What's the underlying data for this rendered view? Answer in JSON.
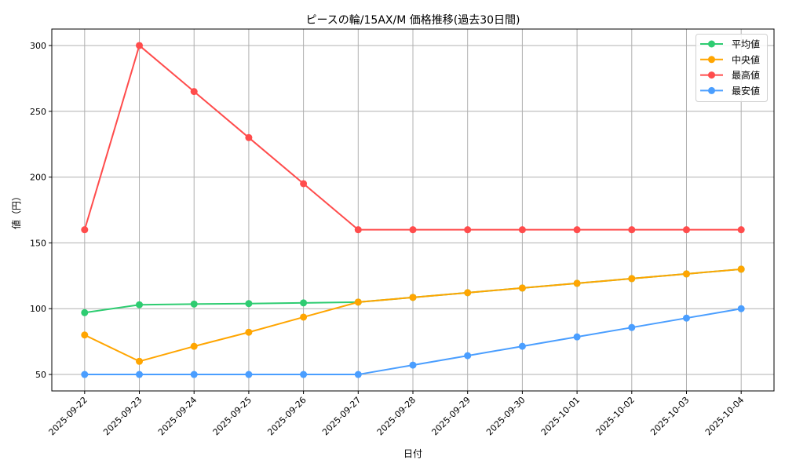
{
  "chart_data": {
    "type": "line",
    "title": "ピースの輪/15AX/M 価格推移(過去30日間)",
    "xlabel": "日付",
    "ylabel": "値（円）",
    "categories": [
      "2025-09-22",
      "2025-09-23",
      "2025-09-24",
      "2025-09-25",
      "2025-09-26",
      "2025-09-27",
      "2025-09-28",
      "2025-09-29",
      "2025-09-30",
      "2025-10-01",
      "2025-10-02",
      "2025-10-03",
      "2025-10-04"
    ],
    "series": [
      {
        "name": "平均値",
        "color": "#2ecc71",
        "values": [
          97.0,
          103.0,
          103.5,
          103.9,
          104.4,
          105.0,
          108.57,
          112.14,
          115.71,
          119.29,
          122.86,
          126.43,
          130.0
        ]
      },
      {
        "name": "中央値",
        "color": "#ffa500",
        "values": [
          80.0,
          60.0,
          71.4,
          82.1,
          93.6,
          105.0,
          108.57,
          112.14,
          115.71,
          119.29,
          122.86,
          126.43,
          130.0
        ]
      },
      {
        "name": "最高値",
        "color": "#ff4c4c",
        "values": [
          160,
          300,
          265,
          230,
          195,
          160,
          160,
          160,
          160,
          160,
          160,
          160,
          160
        ]
      },
      {
        "name": "最安値",
        "color": "#4a9eff",
        "values": [
          50,
          50,
          50,
          50,
          50,
          50,
          57.14,
          64.29,
          71.43,
          78.57,
          85.71,
          92.86,
          100.0
        ]
      }
    ],
    "yticks": [
      50,
      100,
      150,
      200,
      250,
      300
    ],
    "ylim": [
      37.5,
      312.5
    ],
    "xlim": [
      -0.6,
      12.6
    ],
    "grid": true,
    "legend_position": "upper right",
    "marker": "circle"
  }
}
